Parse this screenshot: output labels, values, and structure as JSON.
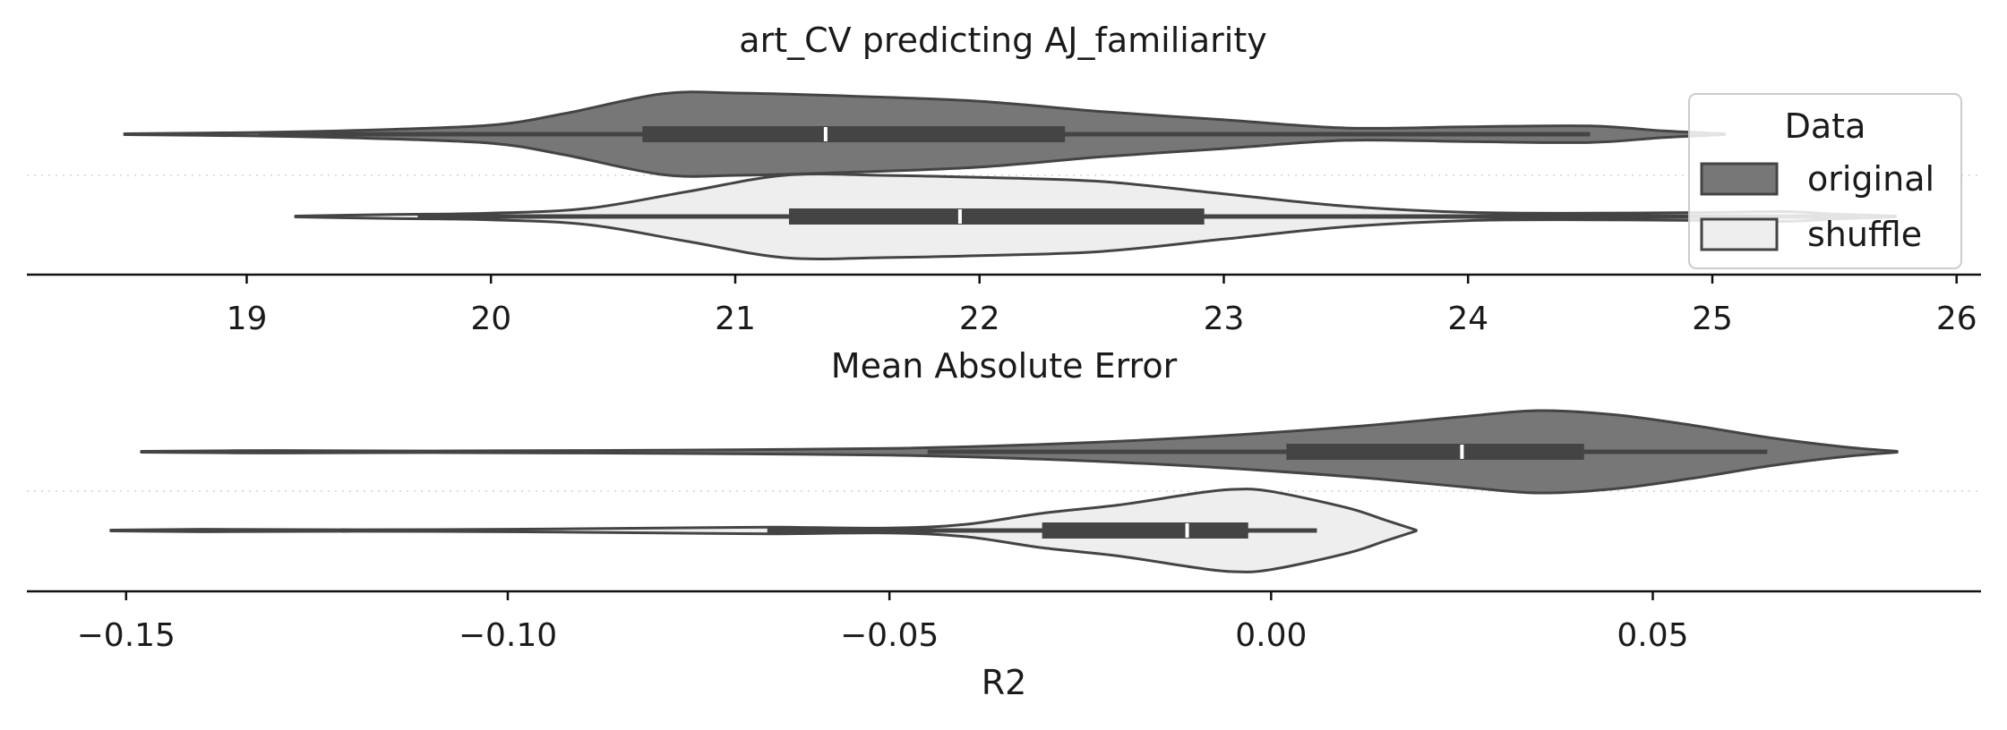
{
  "chart_data": [
    {
      "type": "violin",
      "title": "art_CV predicting AJ_familiarity",
      "xlabel": "Mean Absolute Error",
      "xlim": [
        18.1,
        26.1
      ],
      "ticks": [
        19,
        20,
        21,
        22,
        23,
        24,
        25,
        26
      ],
      "tick_labels": [
        "19",
        "20",
        "21",
        "22",
        "23",
        "24",
        "25",
        "26"
      ],
      "series": [
        {
          "name": "original",
          "color": "#777777",
          "min": 18.5,
          "whisker_low": 19.05,
          "q1": 20.62,
          "median": 21.37,
          "q3": 22.35,
          "whisker_high": 24.5,
          "max": 25.05,
          "density": [
            [
              18.5,
              0.01
            ],
            [
              19.0,
              0.04
            ],
            [
              19.5,
              0.1
            ],
            [
              20.0,
              0.22
            ],
            [
              20.3,
              0.5
            ],
            [
              20.7,
              0.98
            ],
            [
              21.0,
              1.0
            ],
            [
              21.5,
              0.92
            ],
            [
              22.0,
              0.8
            ],
            [
              22.5,
              0.55
            ],
            [
              23.0,
              0.35
            ],
            [
              23.5,
              0.15
            ],
            [
              24.0,
              0.18
            ],
            [
              24.5,
              0.2
            ],
            [
              24.8,
              0.08
            ],
            [
              25.05,
              0.01
            ]
          ]
        },
        {
          "name": "shuffle",
          "color": "#eeeeee",
          "min": 19.2,
          "whisker_low": 19.7,
          "q1": 21.22,
          "median": 21.92,
          "q3": 22.92,
          "whisker_high": 25.6,
          "max": 25.75,
          "density": [
            [
              19.2,
              0.01
            ],
            [
              19.6,
              0.05
            ],
            [
              20.0,
              0.08
            ],
            [
              20.4,
              0.2
            ],
            [
              20.8,
              0.6
            ],
            [
              21.2,
              1.0
            ],
            [
              21.6,
              1.0
            ],
            [
              22.0,
              0.95
            ],
            [
              22.5,
              0.85
            ],
            [
              23.0,
              0.55
            ],
            [
              23.5,
              0.25
            ],
            [
              24.0,
              0.1
            ],
            [
              24.5,
              0.08
            ],
            [
              25.0,
              0.1
            ],
            [
              25.3,
              0.12
            ],
            [
              25.5,
              0.06
            ],
            [
              25.75,
              0.01
            ]
          ]
        }
      ],
      "legend": {
        "title": "Data",
        "entries": [
          "original",
          "shuffle"
        ],
        "placement": "upper-right"
      }
    },
    {
      "type": "violin",
      "title": "",
      "xlabel": "R2",
      "xlim": [
        -0.163,
        0.093
      ],
      "ticks": [
        -0.15,
        -0.1,
        -0.05,
        0.0,
        0.05
      ],
      "tick_labels": [
        "−0.15",
        "−0.10",
        "−0.05",
        "0.00",
        "0.05"
      ],
      "series": [
        {
          "name": "original",
          "color": "#777777",
          "min": -0.148,
          "whisker_low": -0.045,
          "q1": 0.002,
          "median": 0.025,
          "q3": 0.041,
          "whisker_high": 0.065,
          "max": 0.082,
          "density": [
            [
              -0.148,
              0.01
            ],
            [
              -0.13,
              0.03
            ],
            [
              -0.11,
              0.02
            ],
            [
              -0.09,
              0.03
            ],
            [
              -0.07,
              0.05
            ],
            [
              -0.05,
              0.08
            ],
            [
              -0.03,
              0.18
            ],
            [
              -0.01,
              0.35
            ],
            [
              0.01,
              0.6
            ],
            [
              0.025,
              0.85
            ],
            [
              0.035,
              1.0
            ],
            [
              0.045,
              0.9
            ],
            [
              0.055,
              0.65
            ],
            [
              0.065,
              0.35
            ],
            [
              0.075,
              0.12
            ],
            [
              0.082,
              0.01
            ]
          ]
        },
        {
          "name": "shuffle",
          "color": "#eeeeee",
          "min": -0.152,
          "whisker_low": -0.066,
          "q1": -0.03,
          "median": -0.011,
          "q3": -0.003,
          "whisker_high": 0.006,
          "max": 0.019,
          "density": [
            [
              -0.152,
              0.01
            ],
            [
              -0.14,
              0.03
            ],
            [
              -0.12,
              0.02
            ],
            [
              -0.1,
              0.03
            ],
            [
              -0.08,
              0.06
            ],
            [
              -0.065,
              0.08
            ],
            [
              -0.05,
              0.06
            ],
            [
              -0.04,
              0.15
            ],
            [
              -0.03,
              0.42
            ],
            [
              -0.02,
              0.62
            ],
            [
              -0.01,
              0.9
            ],
            [
              -0.005,
              1.0
            ],
            [
              0.0,
              0.95
            ],
            [
              0.01,
              0.55
            ],
            [
              0.015,
              0.25
            ],
            [
              0.019,
              0.01
            ]
          ]
        }
      ]
    }
  ]
}
